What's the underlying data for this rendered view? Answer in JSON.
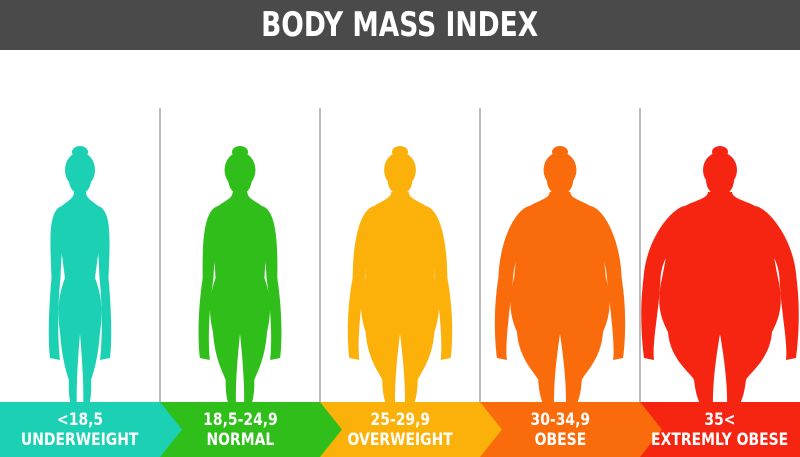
{
  "title": "BODY MASS INDEX",
  "categories": [
    {
      "range": "<18,5",
      "name": "UNDERWEIGHT",
      "color": "#1cd0b3",
      "build": 0.0
    },
    {
      "range": "18,5-24,9",
      "name": "NORMAL",
      "color": "#2fbe1a",
      "build": 0.22
    },
    {
      "range": "25-29,9",
      "name": "OVERWEIGHT",
      "color": "#fbb10a",
      "build": 0.45
    },
    {
      "range": "30-34,9",
      "name": "OBESE",
      "color": "#f96b0b",
      "build": 0.72
    },
    {
      "range": "35<",
      "name": "EXTREMLY OBESE",
      "color": "#f62512",
      "build": 1.0
    }
  ]
}
